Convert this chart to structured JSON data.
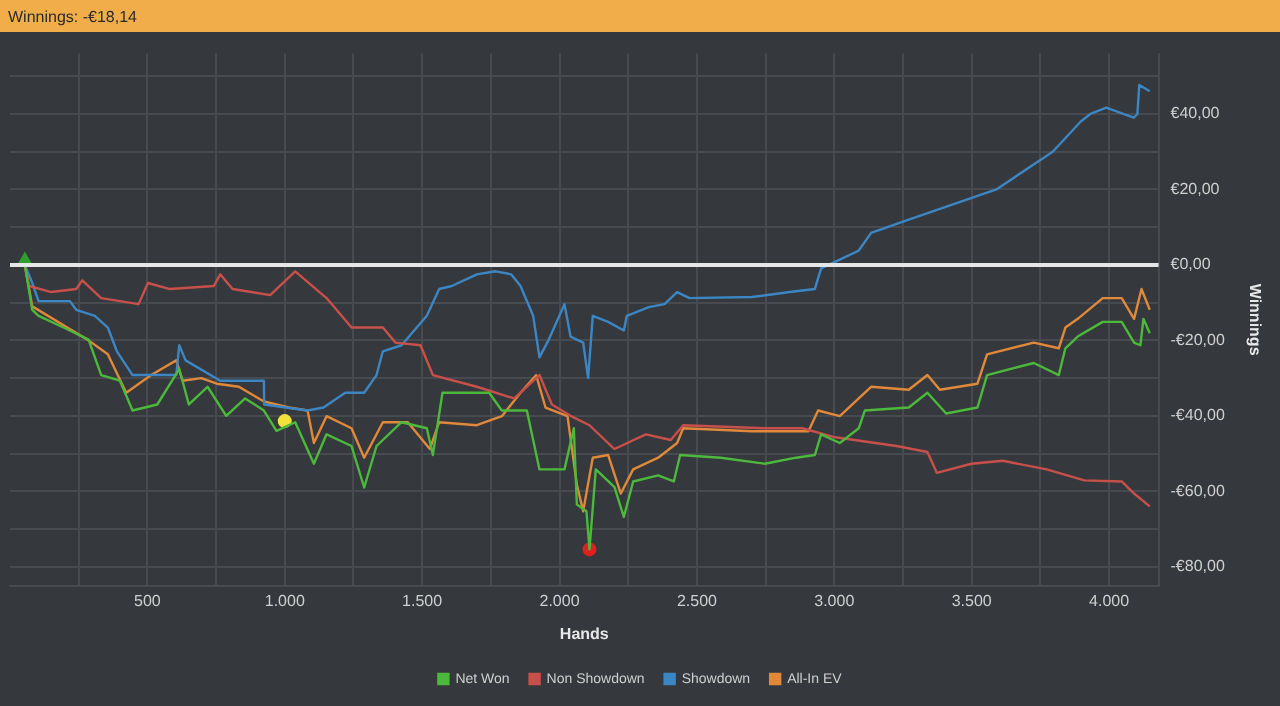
{
  "chart_data": {
    "type": "line",
    "title": "Winnings: -€18,14",
    "xlabel": "Hands",
    "ylabel": "Winnings",
    "xlim": [
      0,
      4180
    ],
    "ylim": [
      -85,
      56
    ],
    "xticks": [
      {
        "value": 250,
        "label": null
      },
      500,
      {
        "value": 750,
        "label": null
      },
      {
        "value": 1000,
        "label": "1.000"
      },
      {
        "value": 1250,
        "label": null
      },
      {
        "value": 1500,
        "label": "1.500"
      },
      {
        "value": 1750,
        "label": null
      },
      {
        "value": 2000,
        "label": "2.000"
      },
      {
        "value": 2250,
        "label": null
      },
      {
        "value": 2500,
        "label": "2.500"
      },
      {
        "value": 2750,
        "label": null
      },
      {
        "value": 3000,
        "label": "3.000"
      },
      {
        "value": 3250,
        "label": null
      },
      {
        "value": 3500,
        "label": "3.500"
      },
      {
        "value": 3750,
        "label": null
      },
      {
        "value": 4000,
        "label": "4.000"
      }
    ],
    "yticks": [
      {
        "value": -80,
        "label": "-€80,00"
      },
      {
        "value": -70,
        "label": null
      },
      {
        "value": -60,
        "label": "-€60,00"
      },
      {
        "value": -50,
        "label": null
      },
      {
        "value": -40,
        "label": "-€40,00"
      },
      {
        "value": -30,
        "label": null
      },
      {
        "value": -20,
        "label": "-€20,00"
      },
      {
        "value": -10,
        "label": null
      },
      {
        "value": 0,
        "label": "€0,00"
      },
      {
        "value": 10,
        "label": null
      },
      {
        "value": 20,
        "label": "€20,00"
      },
      {
        "value": 30,
        "label": null
      },
      {
        "value": 40,
        "label": "€40,00"
      },
      {
        "value": 50,
        "label": null
      }
    ],
    "grid": true,
    "legend": "bottom",
    "marker": "none",
    "ref_lines": [
      {
        "axis": "y",
        "value": 0,
        "color": "#e6e6e6"
      }
    ],
    "series": [
      {
        "name": "Net Won",
        "color": "#4cb83c",
        "x": [
          54,
          81,
          104,
          195,
          286,
          332,
          400,
          446,
          536,
          616,
          651,
          719,
          787,
          856,
          924,
          970,
          1038,
          1106,
          1152,
          1243,
          1289,
          1334,
          1425,
          1517,
          1539,
          1574,
          1744,
          1790,
          1881,
          1927,
          2018,
          2052,
          2063,
          2098,
          2109,
          2132,
          2200,
          2234,
          2268,
          2359,
          2416,
          2439,
          2587,
          2747,
          2861,
          2929,
          2952,
          3020,
          3089,
          3111,
          3271,
          3339,
          3407,
          3521,
          3556,
          3726,
          3817,
          3841,
          3886,
          3977,
          4046,
          4091,
          4114,
          4125,
          4148
        ],
        "values": [
          0,
          -11.9,
          -13.5,
          -16.6,
          -19.8,
          -29.2,
          -30.7,
          -38.6,
          -37,
          -27.6,
          -37,
          -32.3,
          -40,
          -35.4,
          -38.6,
          -44,
          -41.7,
          -52.7,
          -44.9,
          -48,
          -59,
          -48,
          -41.7,
          -43.3,
          -50.4,
          -33.9,
          -33.9,
          -38.6,
          -38.6,
          -54.2,
          -54.2,
          -43.3,
          -63.5,
          -65.3,
          -75.4,
          -54.2,
          -58.9,
          -66.8,
          -57.4,
          -55.8,
          -57.4,
          -50.4,
          -51.1,
          -52.7,
          -51.1,
          -50.4,
          -44.9,
          -47.2,
          -43.3,
          -38.6,
          -37.8,
          -33.9,
          -39.4,
          -37.8,
          -29.2,
          -26,
          -29.2,
          -22.1,
          -19,
          -15.1,
          -15.1,
          -20.6,
          -21.3,
          -14.3,
          -18.1
        ]
      },
      {
        "name": "Non Showdown",
        "color": "#c8504a",
        "x": [
          54,
          70,
          150,
          241,
          263,
          332,
          468,
          502,
          582,
          742,
          765,
          810,
          947,
          1038,
          1152,
          1243,
          1357,
          1403,
          1494,
          1539,
          1699,
          1835,
          1927,
          1972,
          2040,
          2109,
          2200,
          2314,
          2405,
          2450,
          2747,
          2884,
          2997,
          3226,
          3339,
          3373,
          3499,
          3612,
          3773,
          3910,
          4046,
          4091,
          4148
        ],
        "values": [
          0,
          -5.6,
          -7.2,
          -6.4,
          -4.1,
          -8.8,
          -10.4,
          -4.8,
          -6.4,
          -5.6,
          -2.5,
          -6.4,
          -8,
          -1.7,
          -8.8,
          -16.6,
          -16.6,
          -20.6,
          -21.3,
          -29.2,
          -32.3,
          -35.4,
          -29.2,
          -37,
          -40,
          -42.5,
          -48.8,
          -44.9,
          -46.4,
          -42.5,
          -43.3,
          -43.3,
          -45.6,
          -48,
          -49.6,
          -55.1,
          -52.7,
          -51.9,
          -54.2,
          -57.1,
          -57.4,
          -60.6,
          -64
        ]
      },
      {
        "name": "Showdown",
        "color": "#3d86c4",
        "x": [
          54,
          81,
          104,
          218,
          241,
          309,
          356,
          389,
          446,
          605,
          616,
          639,
          765,
          924,
          925,
          1083,
          1141,
          1220,
          1289,
          1334,
          1357,
          1425,
          1517,
          1562,
          1608,
          1699,
          1767,
          1824,
          1858,
          1904,
          1927,
          1961,
          2018,
          2040,
          2086,
          2104,
          2121,
          2177,
          2234,
          2245,
          2325,
          2382,
          2428,
          2473,
          2701,
          2838,
          2929,
          2952,
          3020,
          3089,
          3134,
          3271,
          3590,
          3795,
          3897,
          3932,
          3990,
          4034,
          4090,
          4103,
          4110,
          4148
        ],
        "values": [
          0,
          -4.8,
          -9.6,
          -9.6,
          -11.9,
          -13.5,
          -16.6,
          -22.9,
          -29.2,
          -29.2,
          -21.3,
          -25.3,
          -30.7,
          -30.7,
          -37,
          -38.6,
          -37.8,
          -33.9,
          -33.9,
          -29.2,
          -22.9,
          -21.3,
          -13.5,
          -6.4,
          -5.6,
          -2.5,
          -1.7,
          -2.5,
          -5.6,
          -13.5,
          -24.5,
          -19.8,
          -10.4,
          -19,
          -20.6,
          -30,
          -13.5,
          -15.1,
          -17.4,
          -13.5,
          -11.2,
          -10.4,
          -7.2,
          -8.8,
          -8.5,
          -7.2,
          -6.4,
          -0.9,
          1.4,
          3.8,
          8.5,
          12,
          20,
          30,
          38,
          40,
          41.7,
          40.5,
          39,
          40,
          47.7,
          46
        ]
      },
      {
        "name": "All-In EV",
        "color": "#e0893a",
        "x": [
          54,
          81,
          195,
          286,
          356,
          423,
          514,
          605,
          628,
          696,
          753,
          833,
          924,
          1015,
          1083,
          1106,
          1152,
          1243,
          1289,
          1357,
          1448,
          1528,
          1562,
          1699,
          1790,
          1858,
          1915,
          1949,
          2029,
          2063,
          2086,
          2121,
          2177,
          2223,
          2268,
          2359,
          2428,
          2450,
          2701,
          2906,
          2941,
          3020,
          3089,
          3134,
          3271,
          3339,
          3384,
          3521,
          3556,
          3726,
          3817,
          3841,
          3886,
          3977,
          4046,
          4091,
          4118,
          4148
        ],
        "values": [
          0,
          -11,
          -16,
          -20,
          -23.7,
          -33.9,
          -29.2,
          -25.3,
          -30.7,
          -30,
          -31.5,
          -32.3,
          -36.2,
          -37.8,
          -38.6,
          -47.2,
          -40.1,
          -43.3,
          -51.1,
          -41.7,
          -41.7,
          -48.8,
          -41.7,
          -42.5,
          -40.1,
          -33.9,
          -29.2,
          -37.8,
          -40.1,
          -58.2,
          -65.3,
          -51.1,
          -50.4,
          -60.6,
          -54.2,
          -51.1,
          -47.2,
          -43.3,
          -44.1,
          -44.1,
          -38.6,
          -40.1,
          -35.4,
          -32.3,
          -33.1,
          -29.2,
          -33.1,
          -31.5,
          -23.7,
          -20.6,
          -22.1,
          -16.6,
          -14.3,
          -8.8,
          -8.8,
          -14.3,
          -6.4,
          -11.9
        ]
      },
      {
        "type": "scatter",
        "marker": "triangle",
        "color": "#2f9e2f",
        "x": [
          54
        ],
        "values": [
          1.4
        ]
      },
      {
        "type": "scatter",
        "marker": "circle",
        "color": "#f2e23a",
        "x": [
          1000
        ],
        "values": [
          -41.4
        ]
      },
      {
        "type": "scatter",
        "marker": "circle",
        "color": "#e02020",
        "x": [
          2109
        ],
        "values": [
          -75.4
        ]
      }
    ]
  }
}
